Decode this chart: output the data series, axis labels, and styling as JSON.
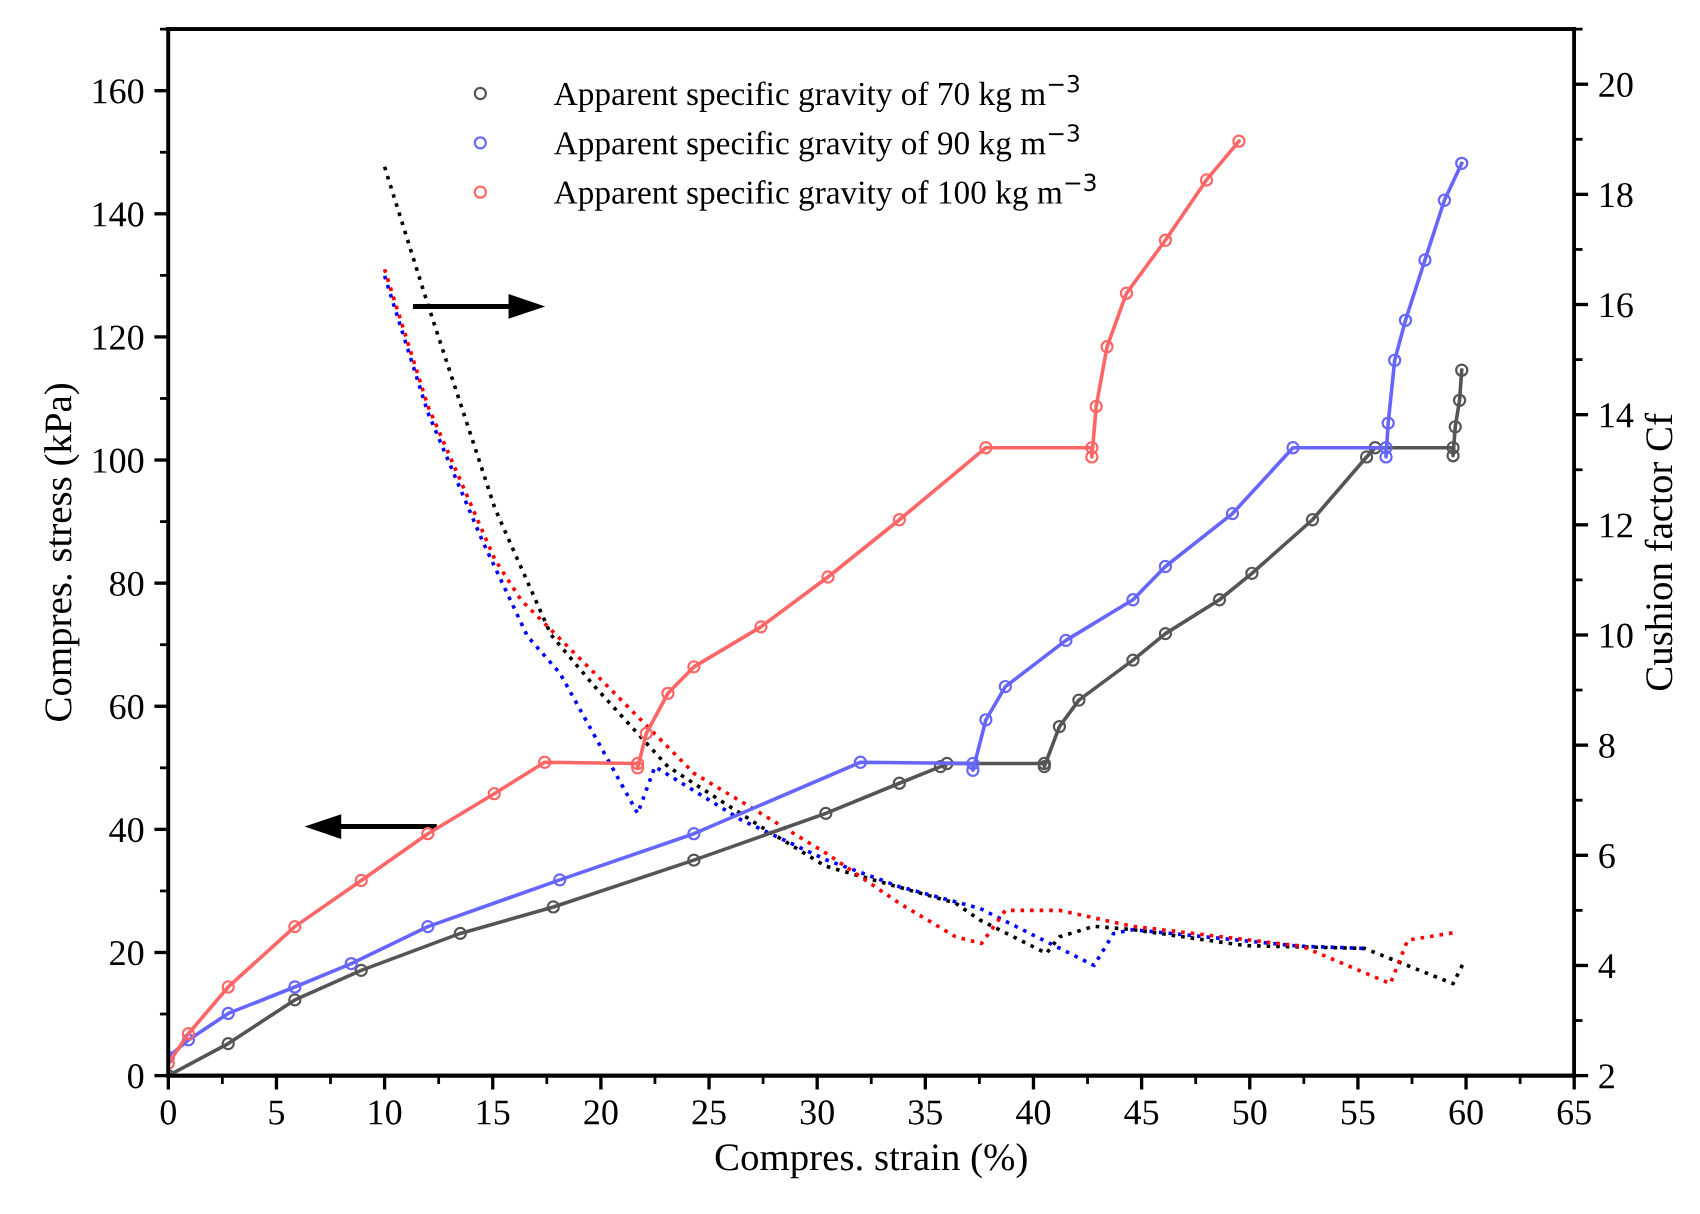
{
  "chart_data": {
    "type": "line",
    "xlabel": "Compres. strain (%)",
    "ylabel": "Compres. stress (kPa)",
    "y2label": "Cushion factor Cf",
    "xlim": [
      0,
      65
    ],
    "xticks": [
      0,
      5,
      10,
      15,
      20,
      25,
      30,
      35,
      40,
      45,
      50,
      55,
      60,
      65
    ],
    "ylim": [
      0,
      170
    ],
    "yticks": [
      0,
      20,
      40,
      60,
      80,
      100,
      120,
      140,
      160
    ],
    "y2lim": [
      2,
      21
    ],
    "y2ticks": [
      2,
      4,
      6,
      8,
      10,
      12,
      14,
      16,
      18,
      20
    ],
    "grid": false,
    "legend": "top",
    "marker": "circle",
    "series": [
      {
        "name": "Apparent specific gravity of 70 kg m$^{−3}$",
        "color": "#555555",
        "x": [
          0,
          2.77,
          5.85,
          8.92,
          13.5,
          17.8,
          24.3,
          30.4,
          33.8,
          35.7,
          36.0,
          40.5,
          40.5,
          41.2,
          42.1,
          44.6,
          46.1,
          48.6,
          50.1,
          52.9,
          55.4,
          55.8,
          59.4,
          59.4,
          59.5,
          59.7,
          59.8
        ],
        "values": [
          0,
          5.2,
          12.3,
          17.1,
          23.1,
          27.4,
          35,
          42.6,
          47.5,
          50.2,
          50.7,
          50.7,
          50.2,
          56.7,
          61,
          67.5,
          71.8,
          77.3,
          81.6,
          90.3,
          100.5,
          102,
          102,
          100.7,
          105.4,
          109.7,
          114.6
        ]
      },
      {
        "name": "Apparent specific gravity of 90 kg m$^{−3}$",
        "color": "#6666ff",
        "x": [
          0,
          0.93,
          2.77,
          5.85,
          8.46,
          12.0,
          18.1,
          24.3,
          32.0,
          37.2,
          37.2,
          37.8,
          38.7,
          41.5,
          44.6,
          46.1,
          49.2,
          52.0,
          56.3,
          56.3,
          56.4,
          56.7,
          57.2,
          58.1,
          59.0,
          59.8
        ],
        "values": [
          3,
          5.8,
          10.1,
          14.4,
          18.2,
          24.2,
          31.8,
          39.3,
          50.9,
          50.7,
          49.6,
          57.8,
          63.2,
          70.7,
          77.3,
          82.7,
          91.3,
          102,
          102,
          100.5,
          106,
          116.2,
          122.7,
          132.5,
          142.2,
          148.2
        ]
      },
      {
        "name": "Apparent specific gravity of 100 kg m$^{−3}$",
        "color": "#ff6666",
        "x": [
          0,
          0.93,
          2.77,
          5.85,
          8.92,
          12.0,
          15.07,
          17.4,
          21.7,
          21.7,
          22.1,
          23.1,
          24.3,
          27.4,
          30.5,
          33.8,
          37.8,
          42.7,
          42.7,
          42.9,
          43.4,
          44.3,
          46.1,
          48.0,
          49.5
        ],
        "values": [
          2,
          6.8,
          14.4,
          24.2,
          31.7,
          39.3,
          45.8,
          50.9,
          50.7,
          50,
          55.6,
          62.1,
          66.4,
          72.9,
          81,
          90.3,
          102,
          102,
          100.5,
          108.7,
          118.4,
          127.1,
          135.7,
          145.5,
          151.8
        ]
      },
      {
        "color": "#000000",
        "type": "line",
        "axis": "y2",
        "marker": "none",
        "line_style": "dotted",
        "x": [
          10.0,
          12.0,
          15.1,
          17.7,
          19.7,
          23.1,
          27.4,
          30.4,
          36.4,
          37.5,
          40.6,
          41.2,
          42.8,
          44.6,
          49.8,
          55.3,
          59.4,
          59.9
        ],
        "values": [
          18.5,
          16.0,
          12.3,
          10.0,
          9.07,
          7.61,
          6.52,
          5.8,
          5.13,
          4.83,
          4.22,
          4.52,
          4.71,
          4.65,
          4.36,
          4.31,
          3.67,
          4.06
        ]
      },
      {
        "color": "#0000ff",
        "type": "line",
        "axis": "y2",
        "marker": "none",
        "line_style": "dotted",
        "x": [
          10.0,
          12.0,
          14.5,
          16.6,
          18.1,
          21.7,
          22.5,
          26.5,
          30.4,
          33.8,
          37.5,
          42.8,
          43.7,
          44.6,
          52.3,
          55.3
        ],
        "values": [
          16.52,
          14.04,
          11.73,
          9.98,
          9.31,
          6.76,
          7.61,
          6.64,
          5.92,
          5.43,
          5.04,
          4.0,
          4.58,
          4.65,
          4.35,
          4.31
        ]
      },
      {
        "color": "#ff0000",
        "type": "line",
        "axis": "y2",
        "marker": "none",
        "line_style": "dotted",
        "x": [
          10.0,
          12.0,
          15.1,
          16.3,
          19.7,
          24.3,
          27.4,
          30.4,
          33.8,
          36.4,
          37.6,
          38.7,
          41.2,
          44.6,
          52.4,
          56.5,
          57.3,
          59.5
        ],
        "values": [
          16.64,
          14.16,
          11.37,
          10.64,
          9.31,
          7.49,
          6.76,
          6.04,
          5.13,
          4.52,
          4.4,
          5.0,
          5.0,
          4.71,
          4.35,
          3.67,
          4.46,
          4.6
        ]
      }
    ]
  }
}
